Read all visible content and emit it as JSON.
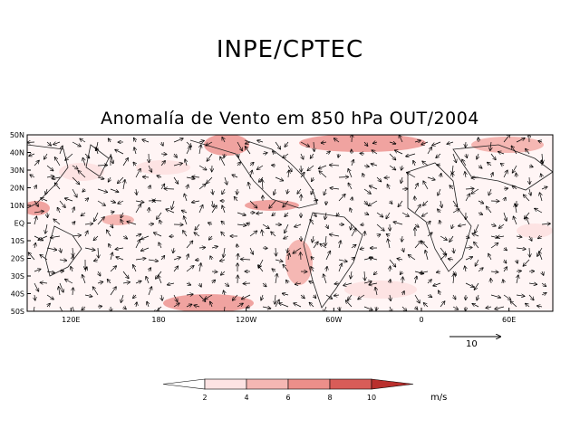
{
  "header": {
    "org": "INPE/CPTEC"
  },
  "map": {
    "title": "Anomalía de Vento em 850 hPa OUT/2004",
    "lat_labels": [
      "50N",
      "40N",
      "30N",
      "20N",
      "10N",
      "EQ",
      "10S",
      "20S",
      "30S",
      "40S",
      "50S"
    ],
    "lon_labels": [
      "120E",
      "180",
      "120W",
      "60W",
      "0",
      "60E"
    ],
    "domain": {
      "lon_min": 90,
      "lon_max": 450,
      "lat_min": -50,
      "lat_max": 50
    }
  },
  "reference_vector": {
    "label": "10",
    "units": "m/s"
  },
  "colorbar": {
    "labels": [
      "2",
      "4",
      "6",
      "8",
      "10"
    ],
    "units": "m/s",
    "colors": [
      "#ffffff",
      "#fde3e3",
      "#f5b7b3",
      "#ec8f8a",
      "#d85c58",
      "#b92f2d"
    ]
  }
}
